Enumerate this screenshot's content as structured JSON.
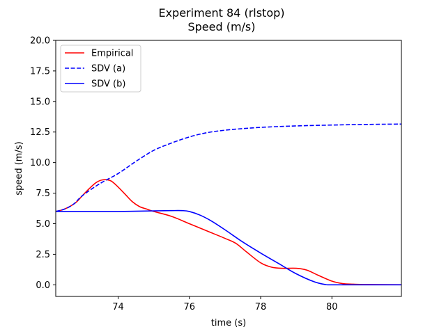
{
  "chart_data": {
    "type": "line",
    "title": "Experiment 84 (rlstop)",
    "subtitle": "Speed (m/s)",
    "xlabel": "time (s)",
    "ylabel": "speed (m/s)",
    "xlim": [
      72.25,
      81.95
    ],
    "ylim": [
      -0.95,
      20.0
    ],
    "xticks": [
      74,
      76,
      78,
      80
    ],
    "yticks": [
      0.0,
      2.5,
      5.0,
      7.5,
      10.0,
      12.5,
      15.0,
      17.5,
      20.0
    ],
    "grid": false,
    "legend_position": "top-left",
    "series": [
      {
        "name": "Empirical",
        "color": "#ff0000",
        "style": "solid",
        "points": [
          [
            72.25,
            6.0
          ],
          [
            72.5,
            6.2
          ],
          [
            72.8,
            6.7
          ],
          [
            73.0,
            7.3
          ],
          [
            73.2,
            7.9
          ],
          [
            73.4,
            8.4
          ],
          [
            73.6,
            8.6
          ],
          [
            73.8,
            8.5
          ],
          [
            74.0,
            8.0
          ],
          [
            74.2,
            7.4
          ],
          [
            74.4,
            6.8
          ],
          [
            74.6,
            6.4
          ],
          [
            74.8,
            6.2
          ],
          [
            75.0,
            6.0
          ],
          [
            75.5,
            5.6
          ],
          [
            76.0,
            5.0
          ],
          [
            76.5,
            4.4
          ],
          [
            77.0,
            3.8
          ],
          [
            77.3,
            3.4
          ],
          [
            77.6,
            2.7
          ],
          [
            78.0,
            1.8
          ],
          [
            78.3,
            1.45
          ],
          [
            78.6,
            1.35
          ],
          [
            79.0,
            1.35
          ],
          [
            79.3,
            1.2
          ],
          [
            79.6,
            0.8
          ],
          [
            80.0,
            0.3
          ],
          [
            80.3,
            0.1
          ],
          [
            80.6,
            0.05
          ],
          [
            81.0,
            0.02
          ],
          [
            81.95,
            0.01
          ]
        ]
      },
      {
        "name": "SDV (a)",
        "color": "#0000ff",
        "style": "dashed",
        "points": [
          [
            72.25,
            6.0
          ],
          [
            72.5,
            6.2
          ],
          [
            72.75,
            6.6
          ],
          [
            73.0,
            7.3
          ],
          [
            73.5,
            8.3
          ],
          [
            74.0,
            9.1
          ],
          [
            74.5,
            10.1
          ],
          [
            75.0,
            11.0
          ],
          [
            75.5,
            11.6
          ],
          [
            76.0,
            12.1
          ],
          [
            76.5,
            12.45
          ],
          [
            77.0,
            12.65
          ],
          [
            77.5,
            12.78
          ],
          [
            78.0,
            12.88
          ],
          [
            78.5,
            12.95
          ],
          [
            79.0,
            13.0
          ],
          [
            79.5,
            13.04
          ],
          [
            80.0,
            13.07
          ],
          [
            80.5,
            13.1
          ],
          [
            81.0,
            13.12
          ],
          [
            81.5,
            13.14
          ],
          [
            81.95,
            13.15
          ]
        ]
      },
      {
        "name": "SDV (b)",
        "color": "#0000ff",
        "style": "solid",
        "points": [
          [
            72.25,
            6.0
          ],
          [
            73.0,
            6.0
          ],
          [
            74.0,
            6.0
          ],
          [
            75.0,
            6.05
          ],
          [
            75.5,
            6.07
          ],
          [
            75.8,
            6.07
          ],
          [
            76.0,
            6.0
          ],
          [
            76.3,
            5.7
          ],
          [
            76.6,
            5.25
          ],
          [
            77.0,
            4.5
          ],
          [
            77.5,
            3.5
          ],
          [
            78.0,
            2.6
          ],
          [
            78.5,
            1.75
          ],
          [
            79.0,
            0.9
          ],
          [
            79.5,
            0.25
          ],
          [
            79.8,
            0.03
          ],
          [
            80.0,
            0.0
          ],
          [
            81.0,
            0.0
          ],
          [
            81.95,
            0.0
          ]
        ]
      }
    ]
  }
}
